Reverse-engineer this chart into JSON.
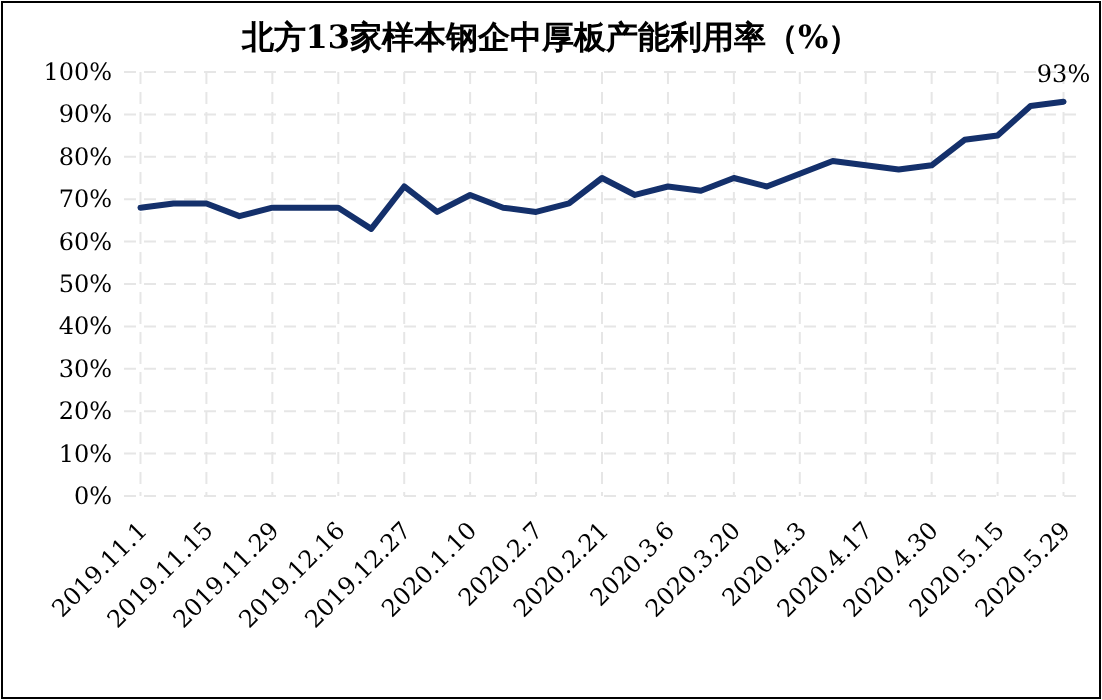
{
  "chart_data": {
    "type": "line",
    "title": "北方13家样本钢企中厚板产能利用率（%）",
    "categories": [
      "2019.11.1",
      null,
      "2019.11.15",
      null,
      "2019.11.29",
      null,
      "2019.12.16",
      null,
      "2019.12.27",
      null,
      "2020.1.10",
      null,
      "2020.2.7",
      null,
      "2020.2.21",
      null,
      "2020.3.6",
      null,
      "2020.3.20",
      null,
      "2020.4.3",
      null,
      "2020.4.17",
      null,
      "2020.4.30",
      null,
      "2020.5.15",
      null,
      "2020.5.29"
    ],
    "series": [
      {
        "color": "#14306b",
        "values": [
          68,
          69,
          69,
          66,
          68,
          68,
          68,
          63,
          73,
          67,
          71,
          68,
          67,
          69,
          75,
          71,
          73,
          72,
          75,
          73,
          76,
          79,
          78,
          77,
          78,
          84,
          85,
          92,
          93
        ]
      }
    ],
    "ylim": [
      0,
      100
    ],
    "yticks": [
      {
        "value": 0,
        "label": "0%"
      },
      {
        "value": 10,
        "label": "10%"
      },
      {
        "value": 20,
        "label": "20%"
      },
      {
        "value": 30,
        "label": "30%"
      },
      {
        "value": 40,
        "label": "40%"
      },
      {
        "value": 50,
        "label": "50%"
      },
      {
        "value": 60,
        "label": "60%"
      },
      {
        "value": 70,
        "label": "70%"
      },
      {
        "value": 80,
        "label": "80%"
      },
      {
        "value": 90,
        "label": "90%"
      },
      {
        "value": 100,
        "label": "100%"
      }
    ],
    "grid": true,
    "marker": "none",
    "line_style": "solid",
    "annotations": [
      {
        "text": "93%",
        "x": "2020.5.29",
        "y": 93
      }
    ]
  }
}
